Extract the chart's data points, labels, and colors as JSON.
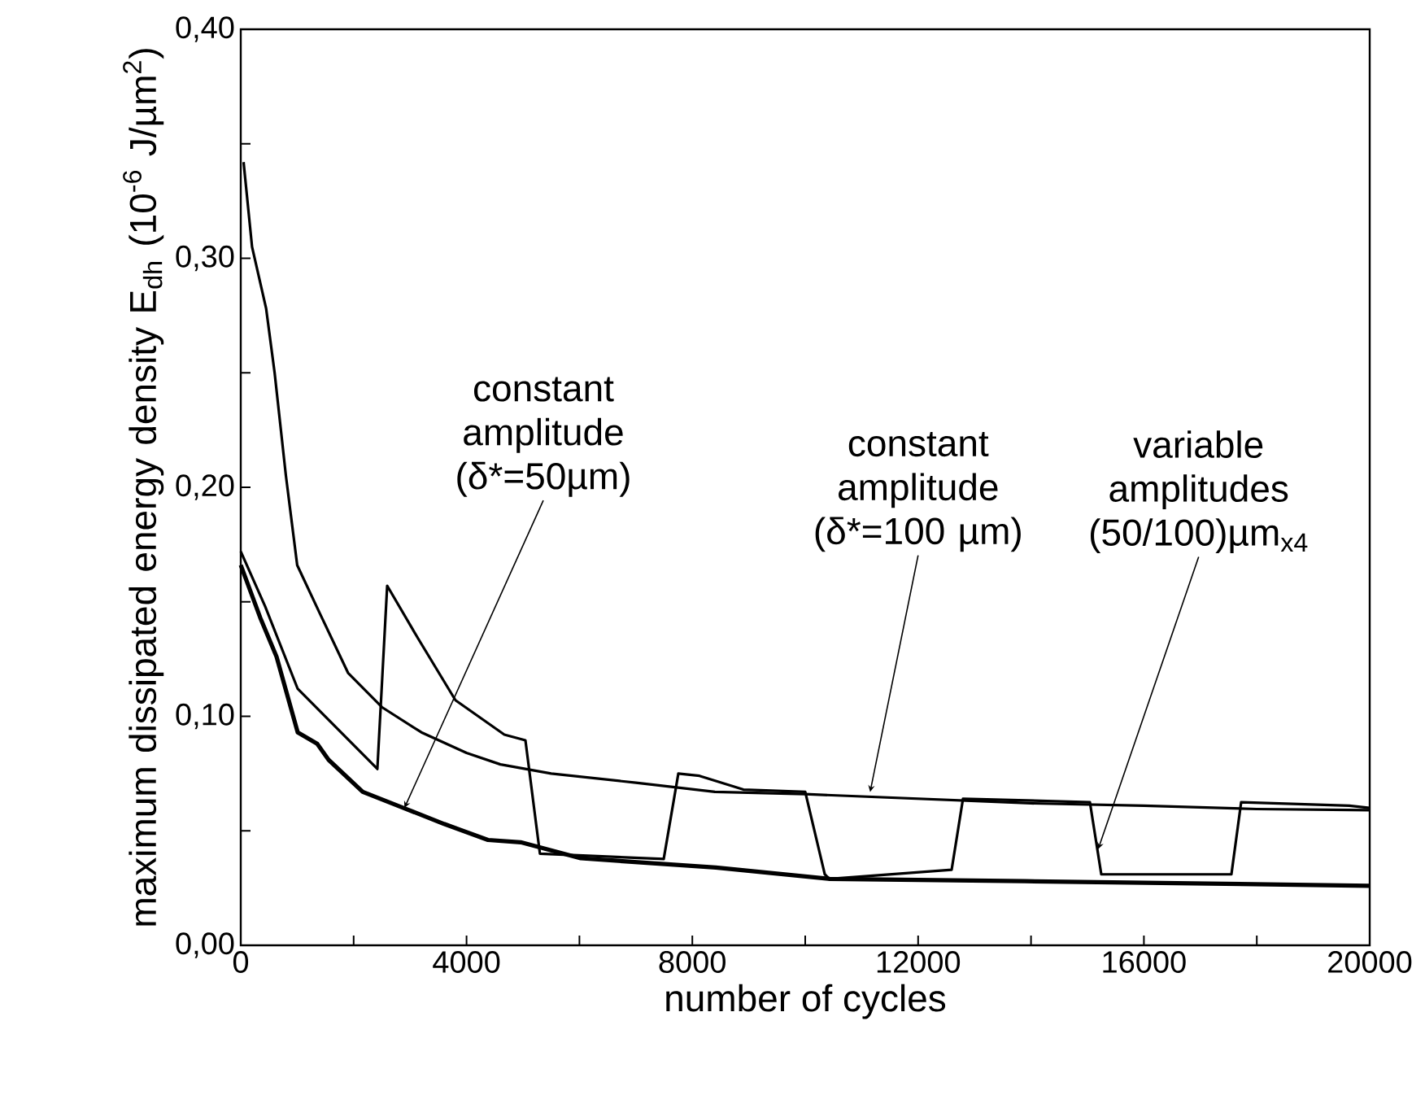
{
  "chart_data": {
    "type": "line",
    "xlabel": "number of cycles",
    "ylabel": "maximum dissipated energy density E$_{dh}$ (10$^{-6}$ J/µm$^{2}$)",
    "xlim": [
      0,
      20000
    ],
    "ylim": [
      0,
      0.4
    ],
    "xticks": [
      0,
      {
        "value": 2000,
        "label": null
      },
      4000,
      {
        "value": 6000,
        "label": null
      },
      8000,
      {
        "value": 10000,
        "label": null
      },
      12000,
      {
        "value": 14000,
        "label": null
      },
      16000,
      {
        "value": 18000,
        "label": null
      },
      20000
    ],
    "yticks": [
      {
        "value": 0,
        "label": "0,00"
      },
      {
        "value": 0.05,
        "label": null
      },
      {
        "value": 0.1,
        "label": "0,10"
      },
      {
        "value": 0.15,
        "label": null
      },
      {
        "value": 0.2,
        "label": "0,20"
      },
      {
        "value": 0.25,
        "label": null
      },
      {
        "value": 0.3,
        "label": "0,30"
      },
      {
        "value": 0.35,
        "label": null
      },
      {
        "value": 0.4,
        "label": "0,40"
      }
    ],
    "grid": false,
    "marker": "none",
    "line_style": "solid",
    "series": [
      {
        "color": "#000000",
        "x": [
          0,
          346,
          634,
          1009,
          1354,
          1556,
          2161,
          2882,
          3602,
          4380,
          4958,
          6023,
          8415,
          10432,
          13890,
          20000
        ],
        "values": [
          0.166,
          0.143,
          0.126,
          0.093,
          0.088,
          0.081,
          0.067,
          0.06,
          0.053,
          0.046,
          0.045,
          0.038,
          0.034,
          0.029,
          0.028,
          0.026
        ]
      },
      {
        "color": "#000000",
        "x": [
          50,
          200,
          450,
          600,
          800,
          1000,
          1400,
          1900,
          2500,
          3200,
          4000,
          4600,
          5500,
          7000,
          8400,
          10000,
          12000,
          14000,
          16000,
          18000,
          20000
        ],
        "values": [
          0.342,
          0.305,
          0.278,
          0.25,
          0.205,
          0.166,
          0.145,
          0.119,
          0.104,
          0.093,
          0.084,
          0.079,
          0.075,
          0.071,
          0.067,
          0.066,
          0.064,
          0.062,
          0.061,
          0.0595,
          0.059
        ]
      },
      {
        "color": "#000000",
        "x": [
          0,
          432,
          1009,
          2420,
          2594,
          3141,
          3804,
          4669,
          5043,
          5300,
          7493,
          7752,
          8127,
          8905,
          10000,
          10346,
          10432,
          12594,
          12795,
          15043,
          15245,
          16300,
          17550,
          17723,
          19640,
          20000
        ],
        "values": [
          0.172,
          0.148,
          0.112,
          0.077,
          0.157,
          0.134,
          0.107,
          0.092,
          0.0895,
          0.04,
          0.0377,
          0.075,
          0.074,
          0.068,
          0.067,
          0.031,
          0.029,
          0.033,
          0.064,
          0.0625,
          0.031,
          0.031,
          0.031,
          0.0625,
          0.061,
          0.06
        ]
      }
    ],
    "annotations": [
      {
        "text": "constant amplitude (δ*=50µm)",
        "x": 2900,
        "y": 0.06
      },
      {
        "text": "constant amplitude (δ*=100 µm)",
        "x": 11150,
        "y": 0.067
      },
      {
        "text": "variable amplitudes (50/100)µm$_{x4}$",
        "x": 15190,
        "y": 0.042
      }
    ]
  }
}
